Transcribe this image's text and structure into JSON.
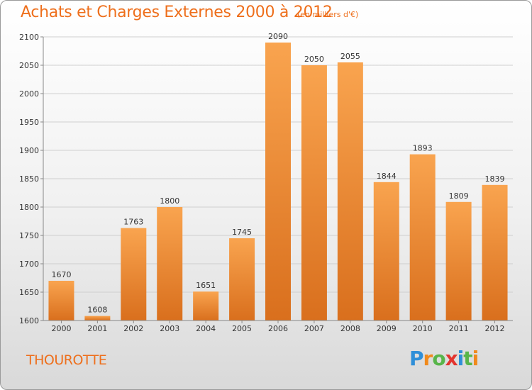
{
  "chart_data": {
    "type": "bar",
    "title": "Achats et Charges Externes 2000 à 2012",
    "subtitle": "(en milliers d'€)",
    "categories": [
      "2000",
      "2001",
      "2002",
      "2003",
      "2004",
      "2005",
      "2006",
      "2007",
      "2008",
      "2009",
      "2010",
      "2011",
      "2012"
    ],
    "values": [
      1670,
      1608,
      1763,
      1800,
      1651,
      1745,
      2090,
      2050,
      2055,
      1844,
      1893,
      1809,
      1839
    ],
    "ylim": [
      1600,
      2100
    ],
    "yticks": [
      1600,
      1650,
      1700,
      1750,
      1800,
      1850,
      1900,
      1950,
      2000,
      2050,
      2100
    ],
    "grid": true,
    "bar_color_top": "#f9a44f",
    "bar_color_bottom": "#d96f1d"
  },
  "location": "THOUROTTE",
  "logo": {
    "text": "Proxiti",
    "letters": [
      "P",
      "r",
      "o",
      "x",
      "i",
      "t",
      "i"
    ],
    "colors": [
      "#2f8fd8",
      "#f08a1c",
      "#58b54a",
      "#e3342f",
      "#2f8fd8",
      "#58b54a",
      "#f08a1c"
    ]
  }
}
